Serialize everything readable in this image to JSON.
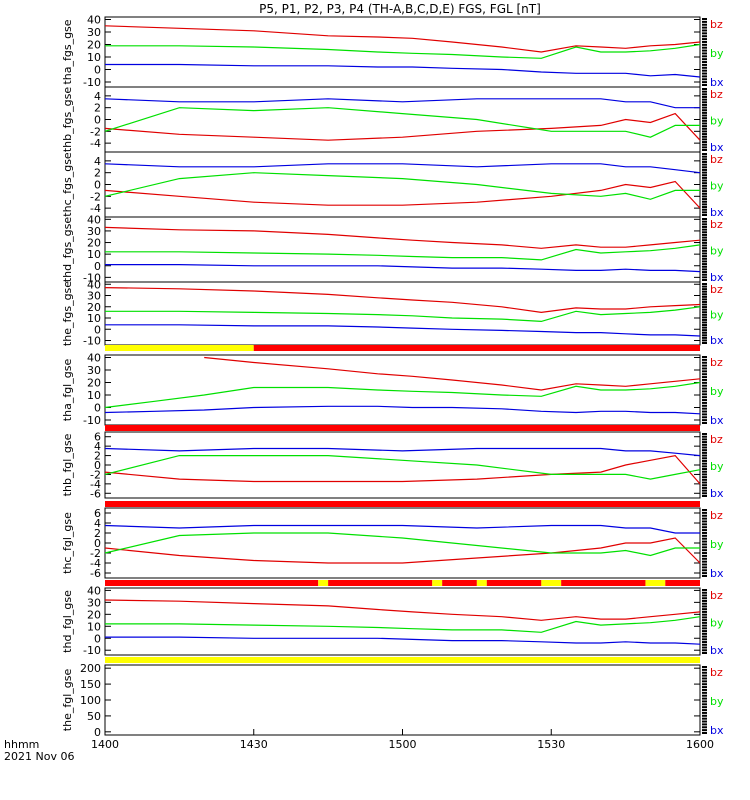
{
  "title": "P5, P1, P2, P3, P4 (TH-A,B,C,D,E) FGS, FGL [nT]",
  "footer": {
    "time_label": "hhmm",
    "date_label": "2021 Nov 06"
  },
  "x_axis": {
    "ticks": [
      "1400",
      "1430",
      "1500",
      "1530",
      "1600"
    ],
    "start_min": 0,
    "end_min": 120
  },
  "legend": [
    "bz",
    "by",
    "bx"
  ],
  "colors": {
    "bz": "#e00000",
    "by": "#00e000",
    "bx": "#0000e0",
    "bar_yellow": "#ffff00",
    "bar_red": "#ff0000"
  },
  "chart_data": [
    {
      "type": "line",
      "ylabel": "tha_fgs_gse",
      "yticks": [
        "40",
        "30",
        "20",
        "10",
        "0",
        "-10"
      ],
      "ylim": [
        -14,
        42
      ],
      "x": [
        0,
        15,
        30,
        45,
        55,
        62,
        70,
        80,
        88,
        95,
        100,
        105,
        110,
        115,
        120
      ],
      "series": [
        {
          "name": "bz",
          "values": [
            35,
            33,
            31,
            27,
            26,
            25,
            22,
            18,
            14,
            19,
            18,
            17,
            19,
            20,
            22
          ]
        },
        {
          "name": "by",
          "values": [
            19,
            19,
            18,
            16,
            14,
            13,
            12,
            10,
            9,
            18,
            14,
            14,
            15,
            17,
            20
          ]
        },
        {
          "name": "bx",
          "values": [
            4,
            4,
            3,
            3,
            2,
            2,
            1,
            0,
            -2,
            -3,
            -3,
            -3,
            -5,
            -4,
            -6
          ]
        }
      ]
    },
    {
      "type": "line",
      "ylabel": "thb_fgs_gse",
      "yticks": [
        "4",
        "2",
        "0",
        "-2",
        "-4"
      ],
      "ylim": [
        -5.5,
        5.5
      ],
      "x": [
        0,
        15,
        30,
        45,
        60,
        75,
        90,
        100,
        105,
        110,
        115,
        120
      ],
      "series": [
        {
          "name": "bz",
          "values": [
            -1.5,
            -2.5,
            -3,
            -3.5,
            -3,
            -2,
            -1.5,
            -1,
            0,
            -0.5,
            1,
            -3.5
          ]
        },
        {
          "name": "by",
          "values": [
            -2,
            2,
            1.5,
            2,
            1,
            0,
            -2,
            -2,
            -2,
            -3,
            -1,
            -1
          ]
        },
        {
          "name": "bx",
          "values": [
            3.5,
            3,
            3,
            3.5,
            3,
            3.5,
            3.5,
            3.5,
            3,
            3,
            2,
            2
          ]
        }
      ]
    },
    {
      "type": "line",
      "ylabel": "thc_fgs_gse",
      "yticks": [
        "4",
        "2",
        "0",
        "-2",
        "-4"
      ],
      "ylim": [
        -5.5,
        5.5
      ],
      "x": [
        0,
        15,
        30,
        45,
        60,
        75,
        90,
        100,
        105,
        110,
        115,
        120
      ],
      "series": [
        {
          "name": "bz",
          "values": [
            -1,
            -2,
            -3,
            -3.5,
            -3.5,
            -3,
            -2,
            -1,
            0,
            -0.5,
            0.5,
            -4
          ]
        },
        {
          "name": "by",
          "values": [
            -2,
            1,
            2,
            1.5,
            1,
            0,
            -1.5,
            -2,
            -1.5,
            -2.5,
            -1,
            -1
          ]
        },
        {
          "name": "bx",
          "values": [
            3.5,
            3,
            3,
            3.5,
            3.5,
            3,
            3.5,
            3.5,
            3,
            3,
            2.5,
            2
          ]
        }
      ]
    },
    {
      "type": "line",
      "ylabel": "thd_fgs_gse",
      "yticks": [
        "40",
        "30",
        "20",
        "10",
        "0",
        "-10"
      ],
      "ylim": [
        -14,
        42
      ],
      "x": [
        0,
        15,
        30,
        45,
        55,
        62,
        70,
        80,
        88,
        95,
        100,
        105,
        110,
        115,
        120
      ],
      "series": [
        {
          "name": "bz",
          "values": [
            33,
            31,
            30,
            27,
            24,
            22,
            20,
            18,
            15,
            18,
            16,
            16,
            18,
            20,
            22
          ]
        },
        {
          "name": "by",
          "values": [
            12,
            12,
            11,
            10,
            9,
            8,
            7,
            7,
            5,
            14,
            11,
            12,
            13,
            15,
            18
          ]
        },
        {
          "name": "bx",
          "values": [
            1,
            1,
            0,
            0,
            0,
            -1,
            -2,
            -2,
            -3,
            -4,
            -4,
            -3,
            -4,
            -4,
            -5
          ]
        }
      ]
    },
    {
      "type": "line",
      "ylabel": "the_fgs_gse",
      "yticks": [
        "40",
        "30",
        "20",
        "10",
        "0",
        "-10"
      ],
      "ylim": [
        -14,
        42
      ],
      "x": [
        0,
        15,
        30,
        45,
        55,
        62,
        70,
        80,
        88,
        95,
        100,
        105,
        110,
        115,
        120
      ],
      "series": [
        {
          "name": "bz",
          "values": [
            37,
            36,
            34,
            31,
            28,
            26,
            24,
            20,
            15,
            19,
            18,
            18,
            20,
            21,
            22
          ]
        },
        {
          "name": "by",
          "values": [
            16,
            16,
            15,
            14,
            13,
            12,
            10,
            9,
            7,
            16,
            13,
            14,
            15,
            17,
            20
          ]
        },
        {
          "name": "bx",
          "values": [
            4,
            4,
            3,
            3,
            2,
            1,
            0,
            -1,
            -2,
            -3,
            -3,
            -4,
            -5,
            -5,
            -6
          ]
        }
      ]
    },
    {
      "type": "line",
      "ylabel": "tha_fgl_gse",
      "yticks": [
        "40",
        "30",
        "20",
        "10",
        "0",
        "-10"
      ],
      "ylim": [
        -14,
        42
      ],
      "x": [
        0,
        10,
        20,
        30,
        45,
        55,
        62,
        70,
        80,
        88,
        95,
        100,
        105,
        110,
        115,
        120
      ],
      "series": [
        {
          "name": "bz",
          "values": [
            null,
            null,
            40,
            36,
            31,
            27,
            25,
            22,
            18,
            14,
            19,
            18,
            17,
            19,
            21,
            23
          ]
        },
        {
          "name": "by",
          "values": [
            0,
            5,
            10,
            16,
            16,
            14,
            13,
            12,
            10,
            9,
            17,
            14,
            14,
            15,
            17,
            20
          ]
        },
        {
          "name": "bx",
          "values": [
            -4,
            -3,
            -2,
            0,
            1,
            1,
            0,
            0,
            -1,
            -3,
            -4,
            -3,
            -3,
            -4,
            -4,
            -5
          ]
        }
      ]
    },
    {
      "type": "line",
      "ylabel": "thb_fgl_gse",
      "yticks": [
        "6",
        "4",
        "2",
        "0",
        "-2",
        "-4",
        "-6"
      ],
      "ylim": [
        -7,
        7
      ],
      "x": [
        0,
        15,
        30,
        45,
        60,
        75,
        90,
        100,
        105,
        110,
        115,
        120
      ],
      "series": [
        {
          "name": "bz",
          "values": [
            -1.5,
            -3,
            -3.5,
            -3.5,
            -3.5,
            -3,
            -2,
            -1.5,
            0,
            1,
            2,
            -4
          ]
        },
        {
          "name": "by",
          "values": [
            -2,
            2,
            2,
            2,
            1,
            0,
            -2,
            -2,
            -2,
            -3,
            -2,
            -1
          ]
        },
        {
          "name": "bx",
          "values": [
            3.5,
            3,
            3.5,
            3.5,
            3,
            3.5,
            3.5,
            3.5,
            3,
            3,
            2.5,
            2
          ]
        }
      ]
    },
    {
      "type": "line",
      "ylabel": "thc_fgl_gse",
      "yticks": [
        "6",
        "4",
        "2",
        "0",
        "-2",
        "-4",
        "-6"
      ],
      "ylim": [
        -7,
        7
      ],
      "x": [
        0,
        15,
        30,
        45,
        60,
        75,
        90,
        100,
        105,
        110,
        115,
        120
      ],
      "series": [
        {
          "name": "bz",
          "values": [
            -1,
            -2.5,
            -3.5,
            -4,
            -4,
            -3,
            -2,
            -1,
            0,
            0,
            1,
            -4
          ]
        },
        {
          "name": "by",
          "values": [
            -2,
            1.5,
            2,
            2,
            1,
            -0.5,
            -2,
            -2,
            -1.5,
            -2.5,
            -1,
            -1
          ]
        },
        {
          "name": "bx",
          "values": [
            3.5,
            3,
            3.5,
            3.5,
            3.5,
            3,
            3.5,
            3.5,
            3,
            3,
            2,
            2
          ]
        }
      ]
    },
    {
      "type": "line",
      "ylabel": "thd_fgl_gse",
      "yticks": [
        "40",
        "30",
        "20",
        "10",
        "0",
        "-10"
      ],
      "ylim": [
        -14,
        42
      ],
      "x": [
        0,
        15,
        30,
        45,
        55,
        62,
        70,
        80,
        88,
        95,
        100,
        105,
        110,
        115,
        120
      ],
      "series": [
        {
          "name": "bz",
          "values": [
            32,
            31,
            29,
            27,
            24,
            22,
            20,
            18,
            15,
            18,
            16,
            16,
            18,
            20,
            22
          ]
        },
        {
          "name": "by",
          "values": [
            12,
            12,
            11,
            10,
            9,
            8,
            7,
            7,
            5,
            14,
            11,
            12,
            13,
            15,
            18
          ]
        },
        {
          "name": "bx",
          "values": [
            1,
            1,
            0,
            0,
            0,
            -1,
            -2,
            -2,
            -3,
            -4,
            -4,
            -3,
            -4,
            -4,
            -5
          ]
        }
      ]
    },
    {
      "type": "line",
      "ylabel": "the_fgl_gse",
      "yticks": [
        "200",
        "150",
        "100",
        "50",
        "0"
      ],
      "ylim": [
        -10,
        210
      ],
      "x": [],
      "series": [
        {
          "name": "bz",
          "values": []
        },
        {
          "name": "by",
          "values": []
        },
        {
          "name": "bx",
          "values": []
        }
      ]
    }
  ],
  "status_bars": [
    {
      "after_panel": 4,
      "segments": [
        {
          "from": 0,
          "to": 30,
          "color": "yellow"
        },
        {
          "from": 30,
          "to": 120,
          "color": "red"
        }
      ]
    },
    {
      "after_panel": 5,
      "segments": [
        {
          "from": 0,
          "to": 120,
          "color": "red"
        }
      ]
    },
    {
      "after_panel": 6,
      "segments": [
        {
          "from": 0,
          "to": 120,
          "color": "red"
        }
      ]
    },
    {
      "after_panel": 7,
      "segments": [
        {
          "from": 0,
          "to": 43,
          "color": "red"
        },
        {
          "from": 43,
          "to": 45,
          "color": "yellow"
        },
        {
          "from": 45,
          "to": 66,
          "color": "red"
        },
        {
          "from": 66,
          "to": 68,
          "color": "yellow"
        },
        {
          "from": 68,
          "to": 75,
          "color": "red"
        },
        {
          "from": 75,
          "to": 77,
          "color": "yellow"
        },
        {
          "from": 77,
          "to": 88,
          "color": "red"
        },
        {
          "from": 88,
          "to": 92,
          "color": "yellow"
        },
        {
          "from": 92,
          "to": 109,
          "color": "red"
        },
        {
          "from": 109,
          "to": 113,
          "color": "yellow"
        },
        {
          "from": 113,
          "to": 120,
          "color": "red"
        }
      ]
    },
    {
      "after_panel": 8,
      "segments": [
        {
          "from": 0,
          "to": 120,
          "color": "yellow"
        }
      ]
    }
  ]
}
